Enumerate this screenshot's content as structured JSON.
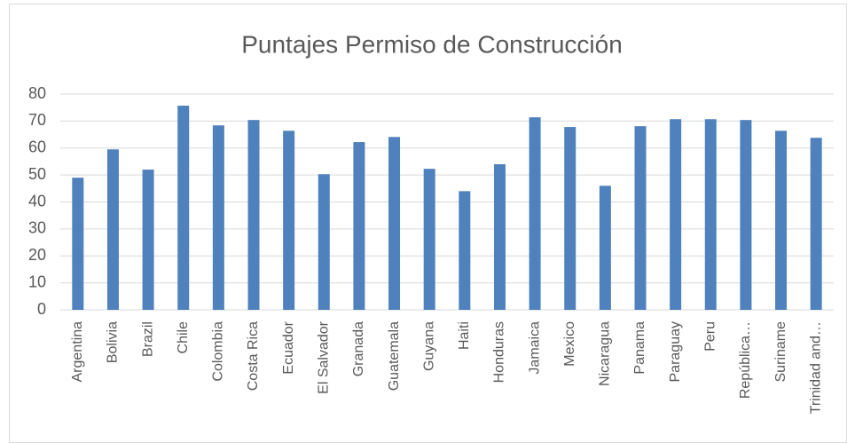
{
  "chart_data": {
    "type": "bar",
    "title": "Puntajes Permiso de Construcción",
    "categories": [
      "Argentina",
      "Bolivia",
      "Brazil",
      "Chile",
      "Colombia",
      "Costa Rica",
      "Ecuador",
      "El Salvador",
      "Granada",
      "Guatemala",
      "Guyana",
      "Haiti",
      "Honduras",
      "Jamaica",
      "Mexico",
      "Nicaragua",
      "Panama",
      "Paraguay",
      "Peru",
      "República…",
      "Suriname",
      "Trinidad and…"
    ],
    "values": [
      49,
      59.5,
      52,
      75.7,
      68.4,
      70.4,
      66.4,
      50.3,
      62.2,
      64.1,
      52.3,
      44,
      54,
      71.4,
      67.8,
      46,
      68.1,
      70.7,
      70.7,
      70.4,
      66.4,
      63.8
    ],
    "color": "#4f81bd",
    "ylim": [
      0,
      80
    ],
    "yticks": [
      0,
      10,
      20,
      30,
      40,
      50,
      60,
      70,
      80
    ],
    "grid": true
  }
}
